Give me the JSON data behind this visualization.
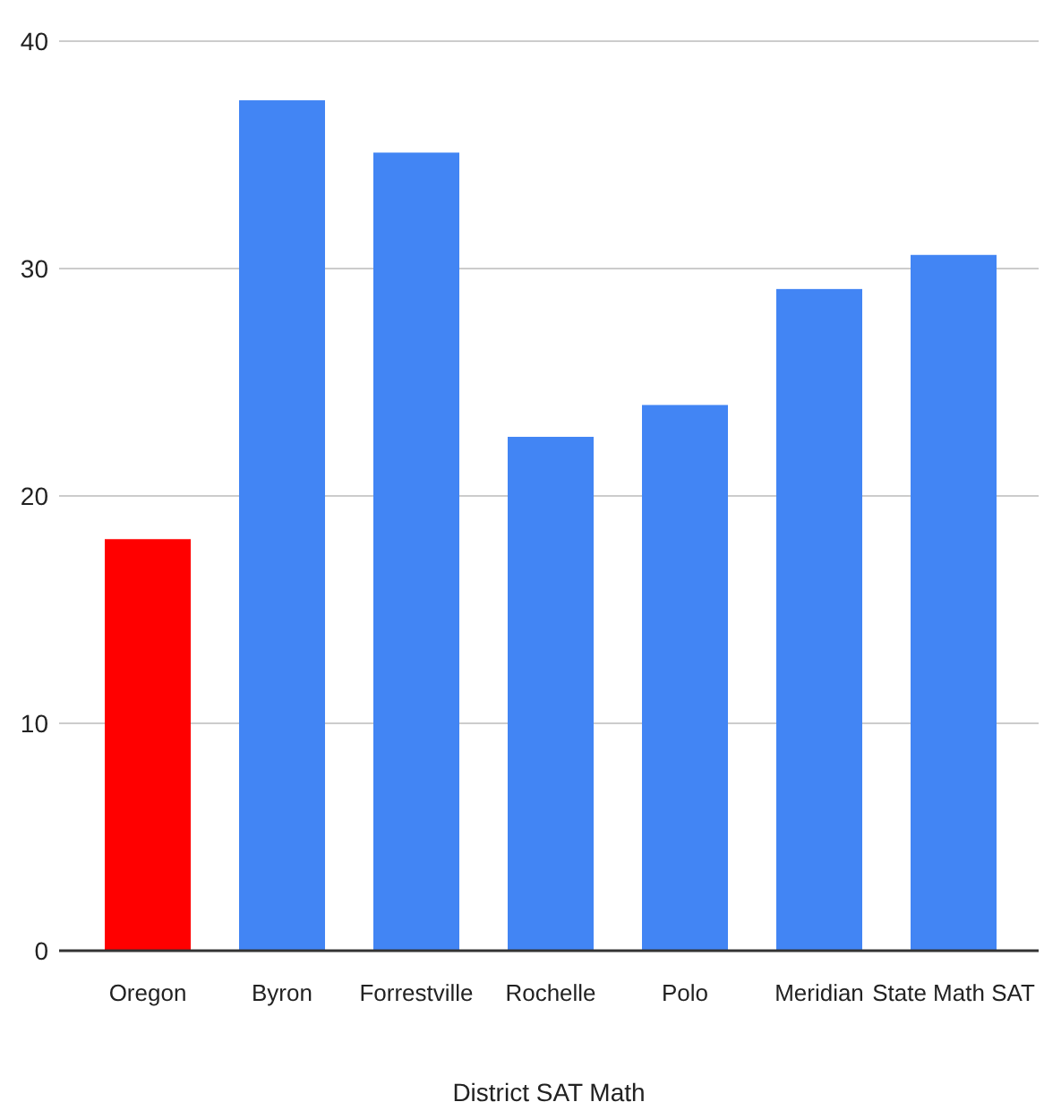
{
  "chart_data": {
    "type": "bar",
    "xlabel": "District SAT Math",
    "categories": [
      "Oregon",
      "Byron",
      "Forrestville",
      "Rochelle",
      "Polo",
      "Meridian",
      "State Math SAT"
    ],
    "values": [
      18.1,
      37.4,
      35.1,
      22.6,
      24.0,
      29.1,
      30.6
    ],
    "colors": [
      "#ff0000",
      "#4285f4",
      "#4285f4",
      "#4285f4",
      "#4285f4",
      "#4285f4",
      "#4285f4"
    ],
    "ylim": [
      0,
      40
    ],
    "yticks": [
      0,
      10,
      20,
      30,
      40
    ],
    "grid": "y"
  }
}
